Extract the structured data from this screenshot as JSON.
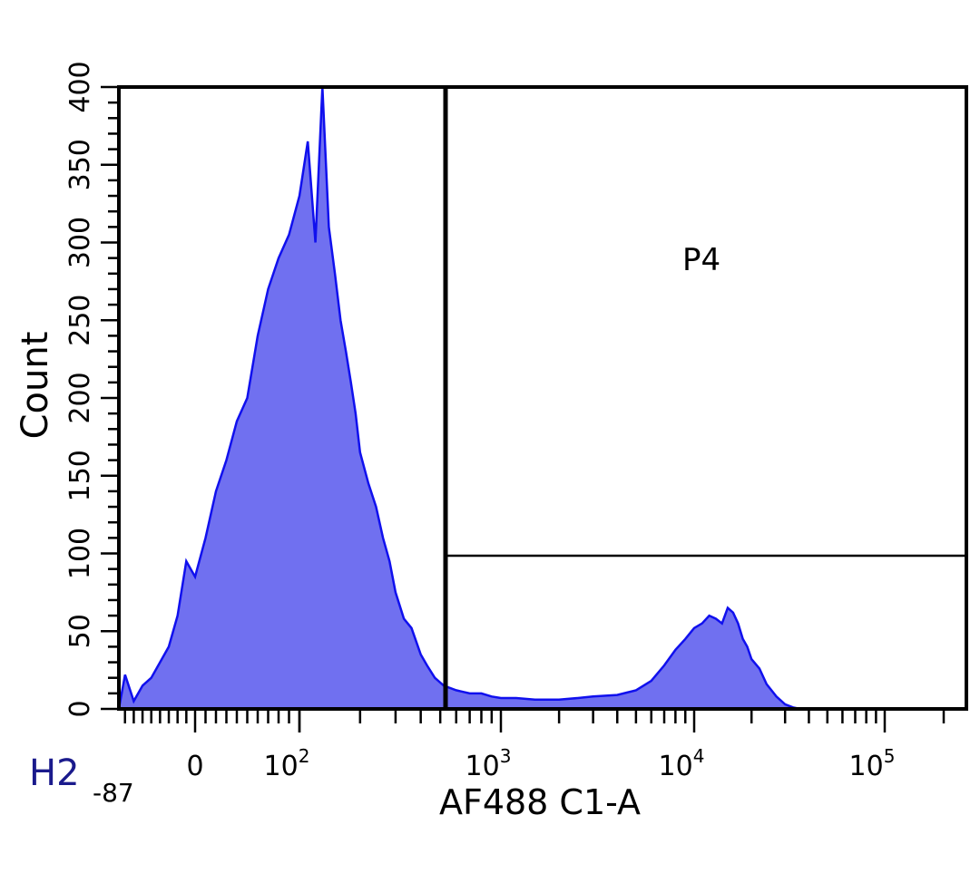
{
  "chart_data": {
    "type": "area",
    "title": "",
    "xlabel": "AF488 C1-A",
    "ylabel": "Count",
    "plot_name": "H2",
    "x_axis_min_label": "-87",
    "xscale": "biexponential",
    "ylim": [
      0,
      400
    ],
    "y_ticks": [
      "0",
      "50",
      "100",
      "150",
      "200",
      "250",
      "300",
      "350",
      "400"
    ],
    "x_ticks": [
      {
        "label": "0",
        "exp": ""
      },
      {
        "label": "10",
        "exp": "2"
      },
      {
        "label": "10",
        "exp": "3"
      },
      {
        "label": "10",
        "exp": "4"
      },
      {
        "label": "10",
        "exp": "5"
      }
    ],
    "gate": {
      "name": "P4",
      "x_start_approx": 430,
      "y_level": 98
    },
    "fill_color": "#7070f0",
    "line_color": "#1010ee",
    "series": [
      {
        "x": [
          -87,
          -80,
          -70,
          -60,
          -50,
          -40,
          -30,
          -20,
          -10,
          0,
          10,
          20,
          30,
          40,
          50,
          60,
          70,
          80,
          90,
          100,
          110,
          120,
          130,
          140,
          150,
          160,
          170,
          180,
          190,
          200,
          220,
          240,
          260,
          280,
          300,
          330,
          360,
          400,
          430,
          470,
          520,
          600,
          700,
          800,
          900,
          1000,
          1200,
          1500,
          2000,
          2500,
          3000,
          4000,
          5000,
          6000,
          7000,
          8000,
          9000,
          10000,
          11000,
          12000,
          13000,
          14000,
          15000,
          16000,
          17000,
          18000,
          19000,
          20000,
          22000,
          24000,
          27000,
          30000,
          33000,
          36000,
          40000,
          50000,
          70000,
          100000,
          200000
        ],
        "values": [
          0,
          22,
          5,
          15,
          20,
          30,
          40,
          60,
          95,
          85,
          110,
          140,
          160,
          185,
          200,
          240,
          270,
          290,
          305,
          330,
          365,
          300,
          400,
          310,
          280,
          250,
          230,
          210,
          190,
          165,
          145,
          130,
          110,
          95,
          75,
          58,
          52,
          35,
          28,
          20,
          15,
          12,
          10,
          10,
          8,
          7,
          7,
          6,
          6,
          7,
          8,
          9,
          12,
          18,
          28,
          38,
          45,
          52,
          55,
          60,
          58,
          55,
          65,
          62,
          55,
          45,
          40,
          32,
          26,
          16,
          8,
          3,
          1,
          0,
          0,
          0,
          0,
          0,
          0
        ]
      }
    ]
  }
}
